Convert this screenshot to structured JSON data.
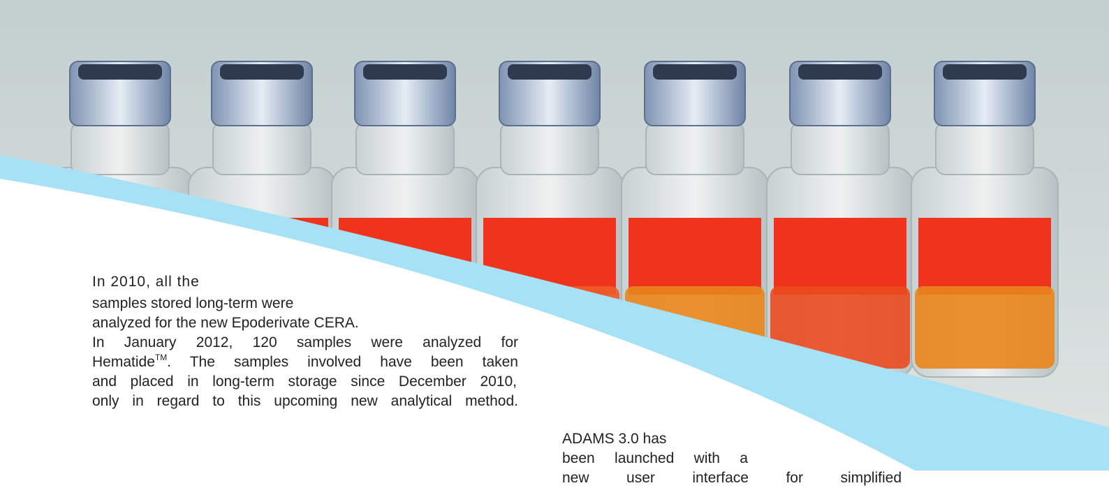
{
  "left_column": {
    "lines": [
      "In 2010, all the",
      "samples stored long-term were",
      "analyzed for the new Epoderivate CERA.",
      "In January 2012, 120 samples were analyzed for"
    ],
    "hematide_line": {
      "name": "Hematide",
      "mark": "TM",
      "rest": ". The samples involved have been taken"
    },
    "closing_lines": [
      "and placed in long-term storage since December 2010,",
      "only in regard to this upcoming new analytical method."
    ]
  },
  "right_column": {
    "lines": [
      "ADAMS 3.0 has",
      "been launched with a",
      "new user interface for simplified"
    ]
  }
}
